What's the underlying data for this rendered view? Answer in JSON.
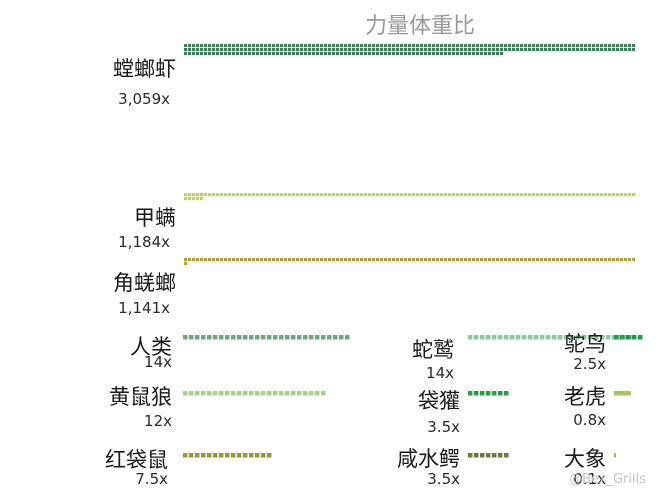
{
  "chart_data": {
    "type": "waffle",
    "title": "力量体重比",
    "series": [
      {
        "name": "螳螂虾",
        "label": "3,059x",
        "value": 3059,
        "color": "#3d7a58"
      },
      {
        "name": "甲螨",
        "label": "1,184x",
        "value": 1184,
        "color": "#b7d65a"
      },
      {
        "name": "角蜣螂",
        "label": "1,141x",
        "value": 1141,
        "color": "#b0a13a"
      },
      {
        "name": "人类",
        "label": "14x",
        "value": 14,
        "color": "#6aa882"
      },
      {
        "name": "黄鼠狼",
        "label": "12x",
        "value": 12,
        "color": "#a8d08a"
      },
      {
        "name": "红袋鼠",
        "label": "7.5x",
        "value": 7.5,
        "color": "#9c9630"
      },
      {
        "name": "蛇鹫",
        "label": "14x",
        "value": 14,
        "color": "#8ec7a2"
      },
      {
        "name": "袋獾",
        "label": "3.5x",
        "value": 3.5,
        "color": "#2f9a4c"
      },
      {
        "name": "咸水鳄",
        "label": "3.5x",
        "value": 3.5,
        "color": "#6f7a3e"
      },
      {
        "name": "鸵鸟",
        "label": "2.5x",
        "value": 2.5,
        "color": "#1f9a4e"
      },
      {
        "name": "老虎",
        "label": "0.8x",
        "value": 0.8,
        "color": "#a8c65c"
      },
      {
        "name": "大象",
        "label": "0.1x",
        "value": 0.1,
        "color": "#9fb878"
      }
    ]
  },
  "watermark": "@Bex_Grills"
}
